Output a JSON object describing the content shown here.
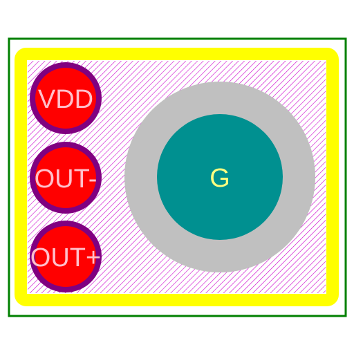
{
  "footprint": {
    "pads": [
      {
        "id": "vdd",
        "label": "VDD",
        "shape": "circle-icon",
        "fill": "#ff0000",
        "ring": "#800080"
      },
      {
        "id": "out-minus",
        "label": "OUT-",
        "shape": "circle-icon",
        "fill": "#ff0000",
        "ring": "#800080"
      },
      {
        "id": "out-plus",
        "label": "OUT+",
        "shape": "circle-icon",
        "fill": "#ff0000",
        "ring": "#800080"
      }
    ],
    "ground_pad": {
      "label": "G",
      "fill": "#009090",
      "clearance": "#c0c0c0"
    },
    "colors": {
      "courtyard": "#008000",
      "silkscreen": "#ffff00",
      "hatch": "#cc00cc",
      "pad_text": "#ffc0cb",
      "ground_text": "#ffff80",
      "background": "#ffffff"
    }
  }
}
